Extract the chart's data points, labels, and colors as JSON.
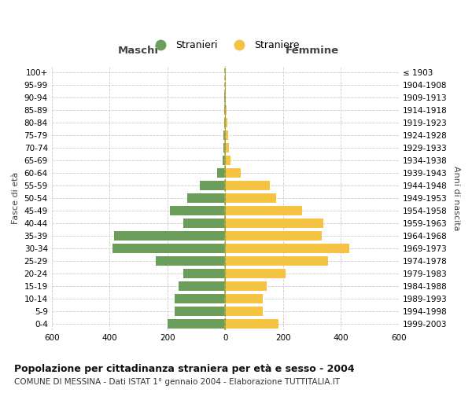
{
  "age_groups": [
    "0-4",
    "5-9",
    "10-14",
    "15-19",
    "20-24",
    "25-29",
    "30-34",
    "35-39",
    "40-44",
    "45-49",
    "50-54",
    "55-59",
    "60-64",
    "65-69",
    "70-74",
    "75-79",
    "80-84",
    "85-89",
    "90-94",
    "95-99",
    "100+"
  ],
  "birth_years": [
    "1999-2003",
    "1994-1998",
    "1989-1993",
    "1984-1988",
    "1979-1983",
    "1974-1978",
    "1969-1973",
    "1964-1968",
    "1959-1963",
    "1954-1958",
    "1949-1953",
    "1944-1948",
    "1939-1943",
    "1934-1938",
    "1929-1933",
    "1924-1928",
    "1919-1923",
    "1914-1918",
    "1909-1913",
    "1904-1908",
    "≤ 1903"
  ],
  "males": [
    200,
    175,
    175,
    160,
    145,
    240,
    390,
    385,
    145,
    190,
    130,
    88,
    28,
    10,
    7,
    5,
    4,
    3,
    2,
    1,
    1
  ],
  "females": [
    185,
    130,
    130,
    145,
    210,
    355,
    430,
    335,
    340,
    265,
    175,
    155,
    55,
    18,
    12,
    10,
    8,
    5,
    3,
    1,
    1
  ],
  "male_color": "#6a9e5a",
  "female_color": "#f5c242",
  "background_color": "#ffffff",
  "grid_color": "#cccccc",
  "center_line_color1": "#c8a830",
  "center_line_color2": "#6a9e5a",
  "title": "Popolazione per cittadinanza straniera per età e sesso - 2004",
  "subtitle": "COMUNE DI MESSINA - Dati ISTAT 1° gennaio 2004 - Elaborazione TUTTITALIA.IT",
  "xlabel_left": "Maschi",
  "xlabel_right": "Femmine",
  "ylabel_left": "Fasce di età",
  "ylabel_right": "Anni di nascita",
  "legend_male": "Stranieri",
  "legend_female": "Straniere",
  "xlim": 600,
  "title_fontsize": 9,
  "subtitle_fontsize": 7.5,
  "tick_fontsize": 7.5,
  "header_fontsize": 9.5,
  "legend_fontsize": 9,
  "ylabel_fontsize": 8
}
